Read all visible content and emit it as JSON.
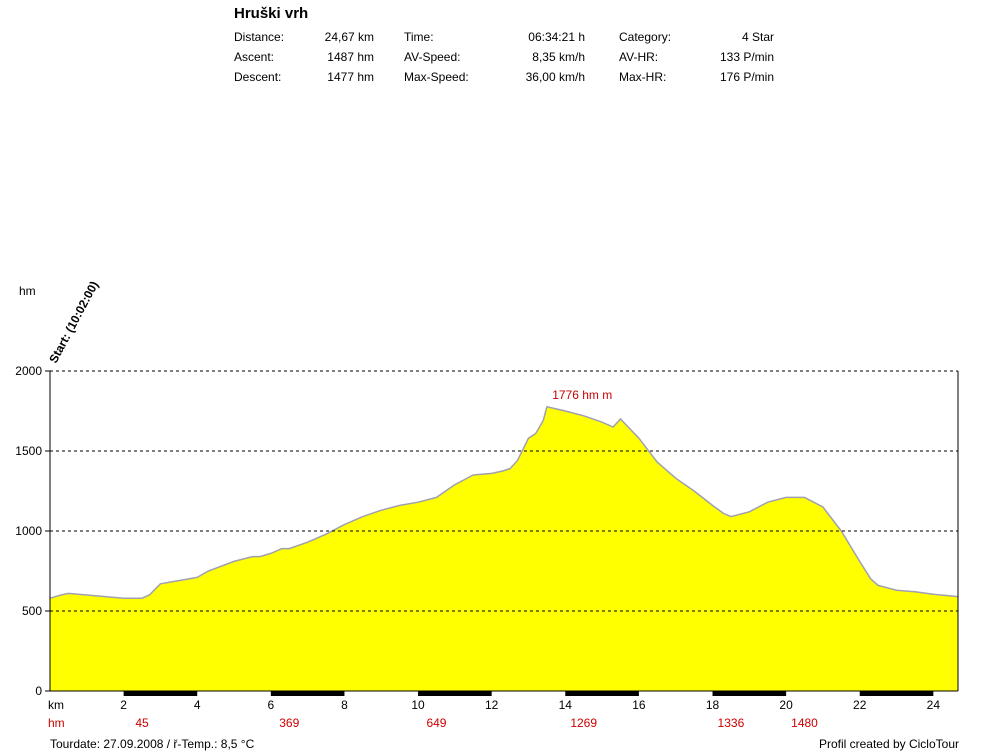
{
  "header": {
    "title": "Hruški vrh",
    "stats": [
      [
        {
          "label": "Distance:",
          "value": "24,67 km"
        },
        {
          "label": "Time:",
          "value": "06:34:21 h"
        },
        {
          "label": "Category:",
          "value": "4 Star"
        }
      ],
      [
        {
          "label": "Ascent:",
          "value": "1487 hm"
        },
        {
          "label": "AV-Speed:",
          "value": "8,35 km/h"
        },
        {
          "label": "AV-HR:",
          "value": "133 P/min"
        }
      ],
      [
        {
          "label": "Descent:",
          "value": "1477 hm"
        },
        {
          "label": "Max-Speed:",
          "value": "36,00 km/h"
        },
        {
          "label": "Max-HR:",
          "value": "176 P/min"
        }
      ]
    ]
  },
  "footer": {
    "left": "Tourdate: 27.09.2008  /  ř-Temp.: 8,5 °C",
    "right": "Profil created by CicloTour"
  },
  "colors": {
    "fill": "#ffff00",
    "outline": "#a0a0b0",
    "annotation": "#cc0000"
  },
  "chart_data": {
    "type": "area",
    "ylabel": "hm",
    "xlabel": "km",
    "xlim": [
      0,
      24.67
    ],
    "ylim": [
      0,
      2000
    ],
    "yticks": [
      0,
      500,
      1000,
      1500,
      2000
    ],
    "xticks": [
      2,
      4,
      6,
      8,
      10,
      12,
      14,
      16,
      18,
      20,
      22,
      24
    ],
    "start_label": "Start: (10:02:00)",
    "peak": {
      "label": "1776 hm m",
      "x": 13.4,
      "y": 1776
    },
    "hm_row_label": "hm",
    "hm_row": [
      {
        "x": 2.5,
        "value": "45"
      },
      {
        "x": 6.5,
        "value": "369"
      },
      {
        "x": 10.5,
        "value": "649"
      },
      {
        "x": 14.5,
        "value": "1269"
      },
      {
        "x": 18.5,
        "value": "1336"
      },
      {
        "x": 20.5,
        "value": "1480"
      }
    ],
    "x": [
      0,
      0.3,
      0.5,
      1,
      1.5,
      2,
      2.5,
      2.7,
      3,
      3.5,
      4,
      4.3,
      5,
      5.5,
      5.7,
      6,
      6.3,
      6.5,
      7,
      7.5,
      8,
      8.5,
      9,
      9.5,
      10,
      10.5,
      11,
      11.5,
      12,
      12.3,
      12.5,
      12.7,
      13,
      13.2,
      13.3,
      13.4,
      13.5,
      14,
      14.5,
      15,
      15.3,
      15.5,
      16,
      16.5,
      17,
      17.5,
      18,
      18.3,
      18.5,
      19,
      19.5,
      20,
      20.5,
      21,
      21.5,
      22,
      22.3,
      22.5,
      23,
      23.5,
      24,
      24.67
    ],
    "y": [
      580,
      600,
      610,
      600,
      590,
      580,
      580,
      600,
      670,
      690,
      710,
      750,
      810,
      840,
      840,
      860,
      890,
      890,
      930,
      980,
      1040,
      1090,
      1130,
      1160,
      1180,
      1210,
      1290,
      1350,
      1360,
      1375,
      1390,
      1440,
      1580,
      1610,
      1650,
      1690,
      1776,
      1750,
      1720,
      1680,
      1650,
      1700,
      1580,
      1430,
      1330,
      1250,
      1160,
      1110,
      1090,
      1120,
      1180,
      1210,
      1210,
      1150,
      1000,
      810,
      700,
      660,
      630,
      620,
      605,
      590
    ]
  }
}
